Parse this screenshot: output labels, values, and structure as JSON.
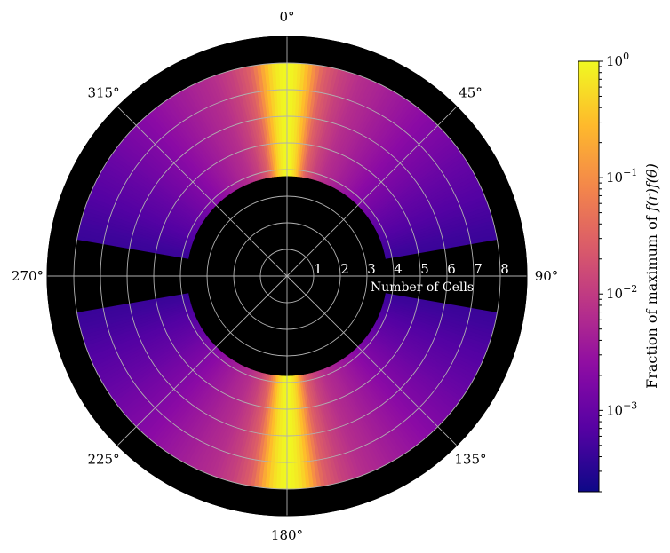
{
  "chart_data": {
    "type": "heatmap",
    "projection": "polar",
    "theta_zero_location": "top",
    "theta_direction": "clockwise",
    "angle_ticks": [
      "0°",
      "45°",
      "90°",
      "135°",
      "180°",
      "225°",
      "270°",
      "315°"
    ],
    "radial_ticks": [
      "1",
      "2",
      "3",
      "4",
      "5",
      "6",
      "7",
      "8"
    ],
    "radial_label": "Number of Cells",
    "r_range": [
      0,
      9
    ],
    "inner_masked_radius": 3.75,
    "outer_data_radius": 8.0,
    "masked_angle_bands_deg": [
      [
        80,
        100
      ],
      [
        260,
        280
      ]
    ],
    "masked_region_color": "#000000",
    "grid": true,
    "intensity_profile": {
      "theta_deg": [
        0,
        2,
        4,
        6,
        8,
        10,
        15,
        20,
        30,
        45,
        60,
        75,
        90
      ],
      "fraction_of_max": [
        1.0,
        0.85,
        0.55,
        0.25,
        0.08,
        0.03,
        0.012,
        0.007,
        0.004,
        0.0018,
        0.0009,
        0.0005,
        0.0003
      ]
    },
    "colorbar": {
      "label_prefix": "Fraction of maximum of ",
      "label_math": "f(r)f(θ)",
      "colormap": "plasma",
      "scale": "log",
      "vmin": 0.0002,
      "vmax": 1.0,
      "ticks": [
        {
          "value": 1.0,
          "base": "10",
          "exp": "0"
        },
        {
          "value": 0.1,
          "base": "10",
          "exp": "−1"
        },
        {
          "value": 0.01,
          "base": "10",
          "exp": "−2"
        },
        {
          "value": 0.001,
          "base": "10",
          "exp": "−3"
        }
      ]
    }
  }
}
